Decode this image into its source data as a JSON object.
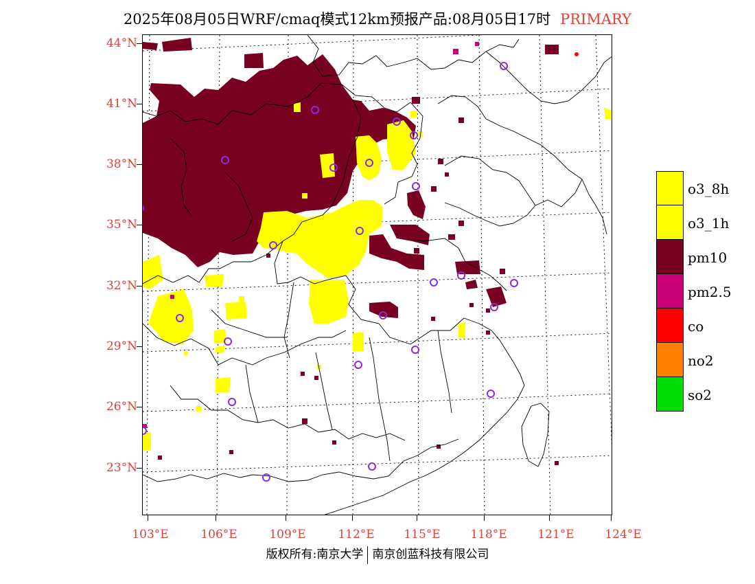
{
  "title": {
    "main": "2025年08月05日WRF/cmaq模式12km预报产品:08月05日17时",
    "pollutant": "PRIMARY"
  },
  "map": {
    "lat_labels": [
      "44°N",
      "41°N",
      "38°N",
      "35°N",
      "32°N",
      "29°N",
      "26°N",
      "23°N"
    ],
    "lon_labels": [
      "103°E",
      "106°E",
      "109°E",
      "112°E",
      "115°E",
      "118°E",
      "121°E",
      "124°E"
    ],
    "colors": {
      "pm10": "#780020",
      "o3": "#ffff00",
      "pm25": "#cc0077",
      "station": "#8a2be2",
      "border": "#000000"
    }
  },
  "legend": [
    {
      "label": "o3_8h",
      "color": "#ffff00"
    },
    {
      "label": "o3_1h",
      "color": "#ffff00"
    },
    {
      "label": "pm10",
      "color": "#780020"
    },
    {
      "label": "pm2.5",
      "color": "#cc0077"
    },
    {
      "label": "co",
      "color": "#ff0000"
    },
    {
      "label": "no2",
      "color": "#ff8000"
    },
    {
      "label": "so2",
      "color": "#00dd00"
    }
  ],
  "footer": {
    "left": "版权所有:南京大学",
    "right": "南京创蓝科技有限公司"
  }
}
